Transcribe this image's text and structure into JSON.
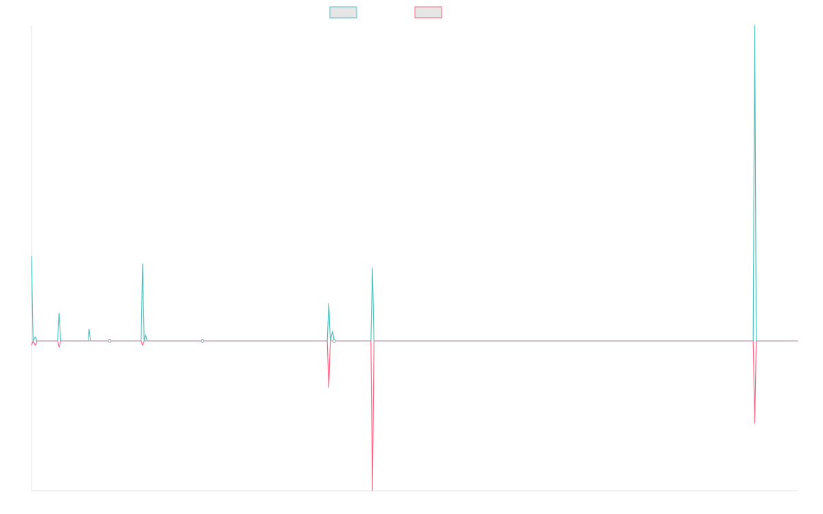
{
  "chart_data": {
    "type": "line",
    "title": "",
    "xlabel": "",
    "ylabel": "",
    "grid": false,
    "legend_position": "top-center",
    "xlim": [
      0,
      100
    ],
    "ylim": [
      -100,
      137
    ],
    "series": [
      {
        "color": "#4bc0c0",
        "fill": "#e6e6e6",
        "points": [
          [
            0,
            43
          ],
          [
            0.2,
            0
          ],
          [
            0.5,
            2
          ],
          [
            0.7,
            0
          ],
          [
            3.4,
            0
          ],
          [
            3.6,
            14
          ],
          [
            3.8,
            0
          ],
          [
            4.5,
            0
          ],
          [
            7.4,
            0
          ],
          [
            7.5,
            6
          ],
          [
            7.7,
            0
          ],
          [
            14.3,
            0
          ],
          [
            14.5,
            39
          ],
          [
            14.7,
            0
          ],
          [
            14.9,
            3
          ],
          [
            15.1,
            0
          ],
          [
            38.6,
            0
          ],
          [
            38.8,
            19
          ],
          [
            39.0,
            0
          ],
          [
            39.3,
            5
          ],
          [
            39.5,
            0
          ],
          [
            44.3,
            0
          ],
          [
            44.5,
            37
          ],
          [
            44.7,
            0
          ],
          [
            94.2,
            0
          ],
          [
            94.4,
            160
          ],
          [
            94.6,
            0
          ],
          [
            100,
            0
          ]
        ]
      },
      {
        "color": "#ff6384",
        "fill": "#e6e6e6",
        "points": [
          [
            0,
            -3
          ],
          [
            0.2,
            0
          ],
          [
            0.5,
            -3
          ],
          [
            0.7,
            0
          ],
          [
            3.4,
            0
          ],
          [
            3.6,
            -4
          ],
          [
            3.8,
            0
          ],
          [
            14.3,
            0
          ],
          [
            14.5,
            -3
          ],
          [
            14.7,
            0
          ],
          [
            38.6,
            0
          ],
          [
            38.8,
            -31
          ],
          [
            39.0,
            0
          ],
          [
            44.3,
            0
          ],
          [
            44.5,
            -100
          ],
          [
            44.7,
            0
          ],
          [
            94.2,
            0
          ],
          [
            94.4,
            -55
          ],
          [
            94.6,
            0
          ],
          [
            100,
            0
          ]
        ]
      }
    ],
    "markers": [
      {
        "x": 10.2,
        "y": 0
      },
      {
        "x": 22.3,
        "y": 0
      },
      {
        "x": 39.5,
        "y": 0
      }
    ]
  }
}
